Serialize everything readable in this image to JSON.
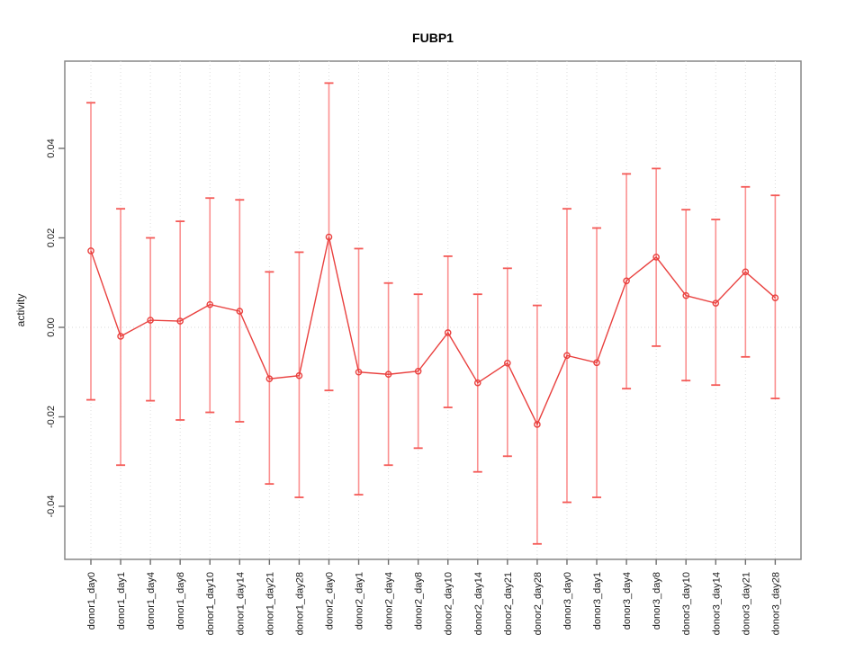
{
  "title": "FUBP1",
  "chart_data": {
    "type": "line",
    "title": "FUBP1",
    "xlabel": "",
    "ylabel": "activity",
    "ylim": [
      -0.052,
      0.0595
    ],
    "y_ticks": [
      -0.04,
      -0.02,
      0.0,
      0.02,
      0.04
    ],
    "y_tick_labels": [
      "-0.04",
      "-0.02",
      "0.00",
      "0.02",
      "0.04"
    ],
    "grid": "dotted vertical gridline at every category; dotted horizontal line at y=0; no legend",
    "marker": "open-circle",
    "error_bars": true,
    "categories": [
      "donor1_day0",
      "donor1_day1",
      "donor1_day4",
      "donor1_day8",
      "donor1_day10",
      "donor1_day14",
      "donor1_day21",
      "donor1_day28",
      "donor2_day0",
      "donor2_day1",
      "donor2_day4",
      "donor2_day8",
      "donor2_day10",
      "donor2_day14",
      "donor2_day21",
      "donor2_day28",
      "donor3_day0",
      "donor3_day1",
      "donor3_day4",
      "donor3_day8",
      "donor3_day10",
      "donor3_day14",
      "donor3_day21",
      "donor3_day28"
    ],
    "series": [
      {
        "name": "activity",
        "values": [
          0.0171,
          -0.002,
          0.0016,
          0.0014,
          0.0051,
          0.0036,
          -0.0115,
          -0.0108,
          0.0202,
          -0.01,
          -0.0105,
          -0.0098,
          -0.0012,
          -0.0124,
          -0.008,
          -0.0217,
          -0.0063,
          -0.0079,
          0.0104,
          0.0157,
          0.0071,
          0.0054,
          0.0124,
          0.0066
        ],
        "upper": [
          0.0502,
          0.0265,
          0.02,
          0.0237,
          0.0289,
          0.0285,
          0.0124,
          0.0168,
          0.0546,
          0.0176,
          0.0099,
          0.0074,
          0.0159,
          0.0074,
          0.0132,
          0.0049,
          0.0265,
          0.0222,
          0.0343,
          0.0355,
          0.0263,
          0.0241,
          0.0314,
          0.0295
        ],
        "lower": [
          -0.0162,
          -0.0308,
          -0.0164,
          -0.0207,
          -0.019,
          -0.0211,
          -0.035,
          -0.038,
          -0.0141,
          -0.0374,
          -0.0308,
          -0.027,
          -0.0179,
          -0.0323,
          -0.0288,
          -0.0484,
          -0.0391,
          -0.038,
          -0.0137,
          -0.0042,
          -0.0119,
          -0.0129,
          -0.0066,
          -0.0159
        ]
      }
    ],
    "colors": {
      "line": "#e9403e",
      "marker_stroke": "#e9403e",
      "error_bar": "#fb9090",
      "error_cap": "#f45a57",
      "grid": "#dcdcdc",
      "box_border": "#878787",
      "tick": "#6e6e6e",
      "zero_line": "#d8d8d8"
    }
  }
}
